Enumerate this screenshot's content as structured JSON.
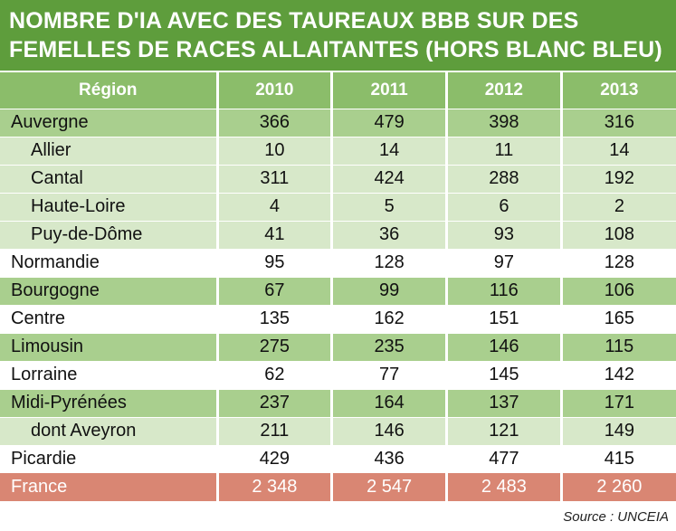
{
  "title_lines": [
    "NOMBRE D'IA AVEC DES TAUREAUX BBB SUR DES",
    "FEMELLES DE RACES ALLAITANTES (HORS BLANC BLEU)"
  ],
  "source": "Source : UNCEIA",
  "colors": {
    "title_bg": "#5e9d3c",
    "header_bg": "#8bbd6a",
    "region_bg": "#a9cf8e",
    "sub_bg": "#d7e8c9",
    "total_bg": "#d98673"
  },
  "chart_data": {
    "type": "table",
    "title": "NOMBRE D'IA AVEC DES TAUREAUX BBB SUR DES FEMELLES DE RACES ALLAITANTES (HORS BLANC BLEU)",
    "columns": [
      "Région",
      "2010",
      "2011",
      "2012",
      "2013"
    ],
    "rows": [
      {
        "region": "Auvergne",
        "level": "dark",
        "indent": false,
        "values": [
          "366",
          "479",
          "398",
          "316"
        ]
      },
      {
        "region": "Allier",
        "level": "light",
        "indent": true,
        "values": [
          "10",
          "14",
          "11",
          "14"
        ]
      },
      {
        "region": "Cantal",
        "level": "light",
        "indent": true,
        "values": [
          "311",
          "424",
          "288",
          "192"
        ]
      },
      {
        "region": "Haute-Loire",
        "level": "light",
        "indent": true,
        "values": [
          "4",
          "5",
          "6",
          "2"
        ]
      },
      {
        "region": "Puy-de-Dôme",
        "level": "light",
        "indent": true,
        "values": [
          "41",
          "36",
          "93",
          "108"
        ]
      },
      {
        "region": "Normandie",
        "level": "white",
        "indent": false,
        "values": [
          "95",
          "128",
          "97",
          "128"
        ]
      },
      {
        "region": "Bourgogne",
        "level": "dark",
        "indent": false,
        "values": [
          "67",
          "99",
          "116",
          "106"
        ]
      },
      {
        "region": "Centre",
        "level": "white",
        "indent": false,
        "values": [
          "135",
          "162",
          "151",
          "165"
        ]
      },
      {
        "region": "Limousin",
        "level": "dark",
        "indent": false,
        "values": [
          "275",
          "235",
          "146",
          "115"
        ]
      },
      {
        "region": "Lorraine",
        "level": "white",
        "indent": false,
        "values": [
          "62",
          "77",
          "145",
          "142"
        ]
      },
      {
        "region": "Midi-Pyrénées",
        "level": "dark",
        "indent": false,
        "values": [
          "237",
          "164",
          "137",
          "171"
        ]
      },
      {
        "region": "dont Aveyron",
        "level": "light",
        "indent": true,
        "values": [
          "211",
          "146",
          "121",
          "149"
        ]
      },
      {
        "region": "Picardie",
        "level": "white",
        "indent": false,
        "values": [
          "429",
          "436",
          "477",
          "415"
        ]
      },
      {
        "region": "France",
        "level": "total",
        "indent": false,
        "values": [
          "2 348",
          "2 547",
          "2 483",
          "2 260"
        ]
      }
    ]
  }
}
